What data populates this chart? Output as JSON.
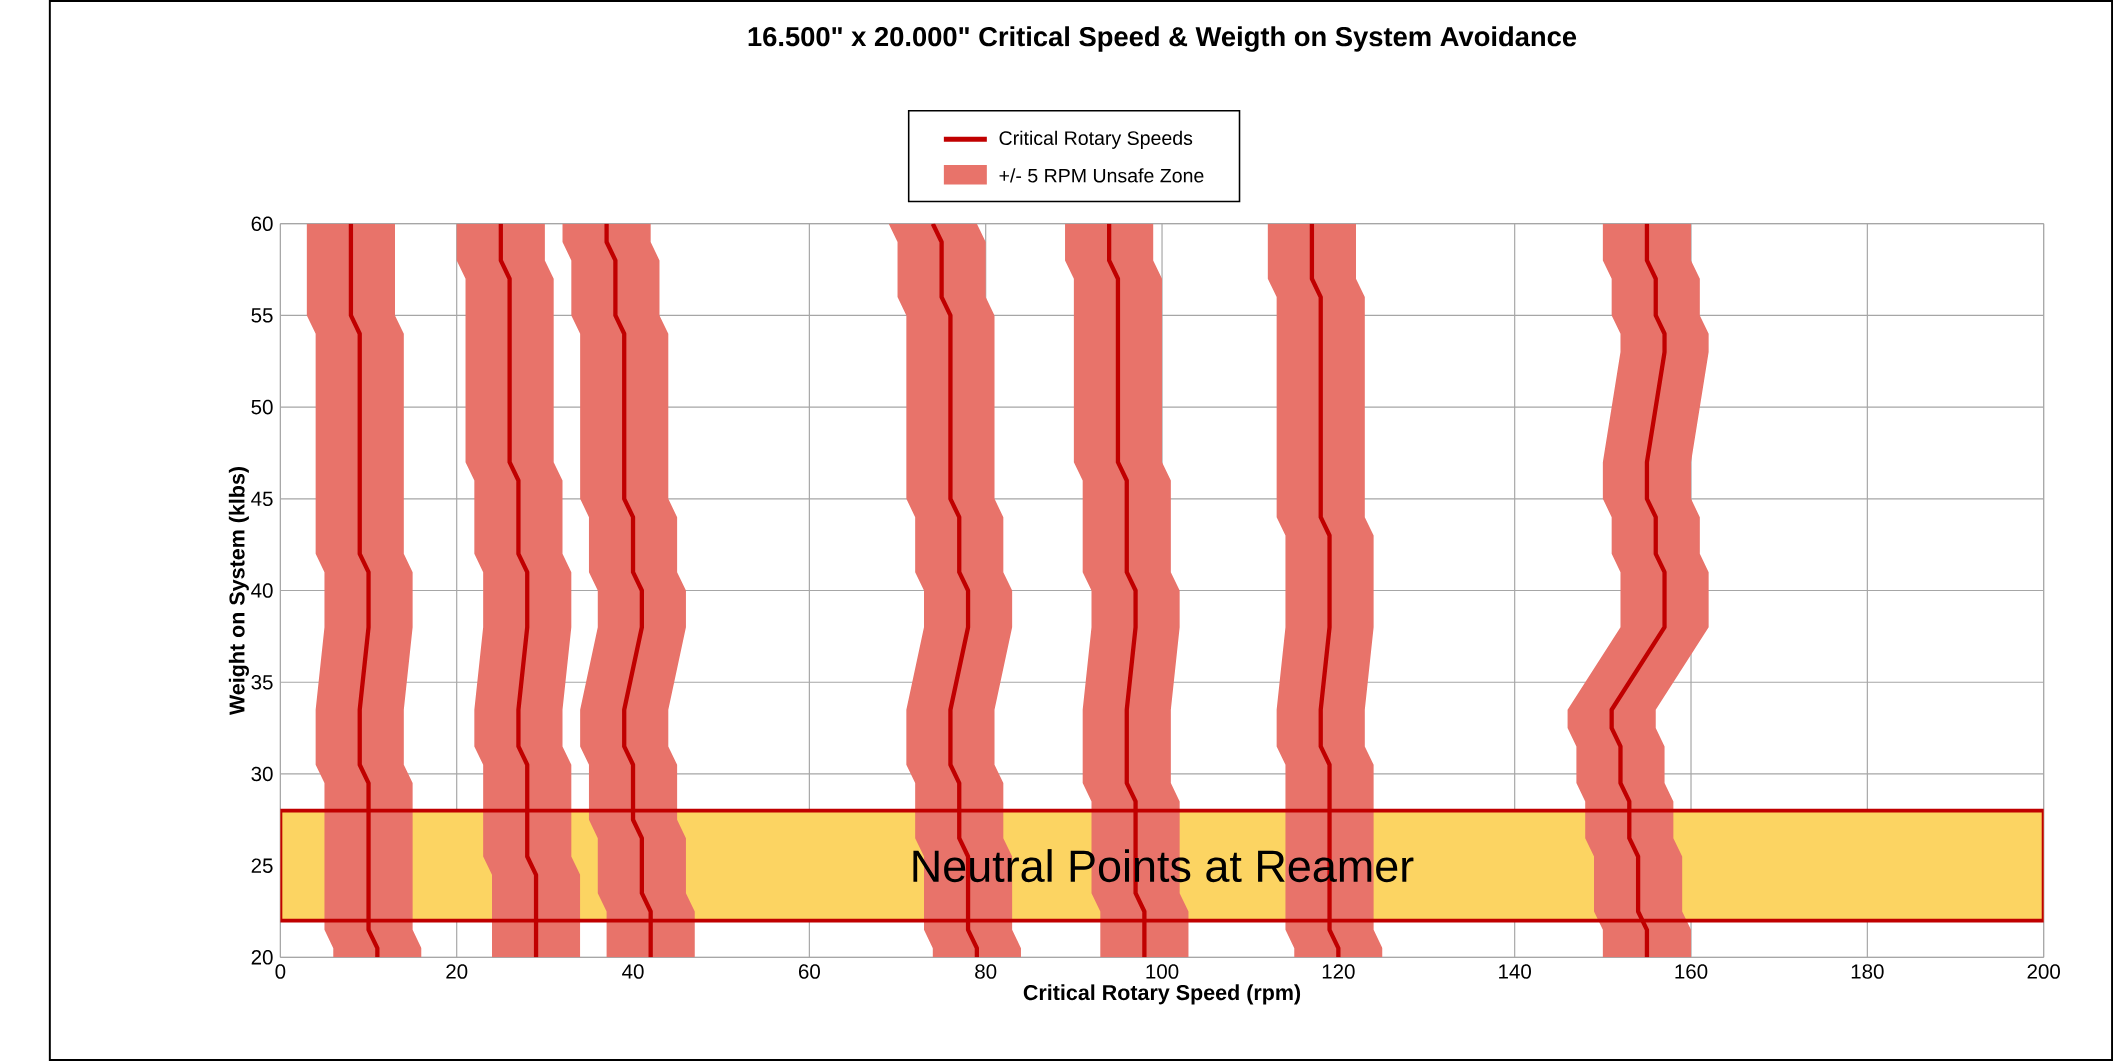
{
  "chart_data": {
    "type": "line",
    "orientation": "horizontal",
    "title": "16.500\" x 20.000\" Critical  Speed & Weigth on System Avoidance",
    "xlabel": "Critical Rotary Speed (rpm)",
    "ylabel": "Weight on System (klbs)",
    "xlim": [
      0,
      200
    ],
    "ylim": [
      20,
      60
    ],
    "xticks": [
      0,
      20,
      40,
      60,
      80,
      100,
      120,
      140,
      160,
      180,
      200
    ],
    "yticks": [
      20,
      25,
      30,
      35,
      40,
      45,
      50,
      55,
      60
    ],
    "grid": true,
    "legend": "top",
    "annotations": [
      "+/-  5 RPM Unsafe Zone"
    ],
    "bands": [
      {
        "axis": "y",
        "from": 22,
        "to": 28,
        "label": "Neutral Points at Reamer",
        "color": "#fcd462"
      }
    ],
    "series": [
      {
        "name": "Critical Rotary Speeds",
        "color": "#c00000",
        "x": [
          60,
          55,
          54,
          42,
          41,
          38,
          33.5,
          30.5,
          29.5,
          21.5,
          20.5,
          20
        ],
        "values": [
          8,
          8,
          9,
          9,
          10,
          10,
          9,
          9,
          10,
          10,
          11,
          11
        ],
        "lower": [
          3,
          3,
          4,
          4,
          5,
          5,
          4,
          4,
          5,
          5,
          6,
          6
        ],
        "upper": [
          13,
          13,
          14,
          14,
          15,
          15,
          14,
          14,
          15,
          15,
          16,
          16
        ]
      },
      {
        "color": "#c00000",
        "x": [
          60,
          58,
          57,
          47,
          46,
          42,
          41,
          38,
          33.5,
          31.5,
          30.5,
          25.5,
          24.5,
          20
        ],
        "values": [
          25,
          25,
          26,
          26,
          27,
          27,
          28,
          28,
          27,
          27,
          28,
          28,
          29,
          29
        ],
        "lower": [
          20,
          20,
          21,
          21,
          22,
          22,
          23,
          23,
          22,
          22,
          23,
          23,
          24,
          24
        ],
        "upper": [
          30,
          30,
          31,
          31,
          32,
          32,
          33,
          33,
          32,
          32,
          33,
          33,
          34,
          34
        ]
      },
      {
        "color": "#c00000",
        "x": [
          60,
          59,
          58,
          55,
          54,
          45,
          44,
          41,
          40,
          38,
          33.5,
          31.5,
          30.5,
          27.5,
          26.5,
          23.5,
          22.5,
          20
        ],
        "values": [
          37,
          37,
          38,
          38,
          39,
          39,
          40,
          40,
          41,
          41,
          39,
          39,
          40,
          40,
          41,
          41,
          42,
          42
        ],
        "lower": [
          32,
          32,
          33,
          33,
          34,
          34,
          35,
          35,
          36,
          36,
          34,
          34,
          35,
          35,
          36,
          36,
          37,
          37
        ],
        "upper": [
          42,
          42,
          43,
          43,
          44,
          44,
          45,
          45,
          46,
          46,
          44,
          44,
          45,
          45,
          46,
          46,
          47,
          47
        ]
      },
      {
        "color": "#c00000",
        "x": [
          60,
          59,
          56,
          55,
          45,
          44,
          41,
          40,
          38,
          33.5,
          30.5,
          29.5,
          26.5,
          25.5,
          21.5,
          20.5,
          20
        ],
        "values": [
          74,
          75,
          75,
          76,
          76,
          77,
          77,
          78,
          78,
          76,
          76,
          77,
          77,
          78,
          78,
          79,
          79
        ],
        "lower": [
          69,
          70,
          70,
          71,
          71,
          72,
          72,
          73,
          73,
          71,
          71,
          72,
          72,
          73,
          73,
          74,
          74
        ],
        "upper": [
          79,
          80,
          80,
          81,
          81,
          82,
          82,
          83,
          83,
          81,
          81,
          82,
          82,
          83,
          83,
          84,
          84
        ]
      },
      {
        "color": "#c00000",
        "x": [
          60,
          58,
          57,
          47,
          46,
          41,
          40,
          38,
          33.5,
          29.5,
          28.5,
          23.5,
          22.5,
          20
        ],
        "values": [
          94,
          94,
          95,
          95,
          96,
          96,
          97,
          97,
          96,
          96,
          97,
          97,
          98,
          98
        ],
        "lower": [
          89,
          89,
          90,
          90,
          91,
          91,
          92,
          92,
          91,
          91,
          92,
          92,
          93,
          93
        ],
        "upper": [
          99,
          99,
          100,
          100,
          101,
          101,
          102,
          102,
          101,
          101,
          102,
          102,
          103,
          103
        ]
      },
      {
        "color": "#c00000",
        "x": [
          60,
          57,
          56,
          44,
          43,
          38,
          33.5,
          31.5,
          30.5,
          21.5,
          20.5,
          20
        ],
        "values": [
          117,
          117,
          118,
          118,
          119,
          119,
          118,
          118,
          119,
          119,
          120,
          120
        ],
        "lower": [
          112,
          112,
          113,
          113,
          114,
          114,
          113,
          113,
          114,
          114,
          115,
          115
        ],
        "upper": [
          122,
          122,
          123,
          123,
          124,
          124,
          123,
          123,
          124,
          124,
          125,
          125
        ]
      },
      {
        "color": "#c00000",
        "x": [
          60,
          58,
          57,
          55,
          54,
          53,
          47,
          45,
          44,
          42,
          41,
          38,
          33.5,
          32.5,
          31.5,
          29.5,
          28.5,
          26.5,
          25.5,
          22.5,
          21.5,
          20
        ],
        "values": [
          155,
          155,
          156,
          156,
          157,
          157,
          155,
          155,
          156,
          156,
          157,
          157,
          151,
          151,
          152,
          152,
          153,
          153,
          154,
          154,
          155,
          155
        ],
        "lower": [
          150,
          150,
          151,
          151,
          152,
          152,
          150,
          150,
          151,
          151,
          152,
          152,
          146,
          146,
          147,
          147,
          148,
          148,
          149,
          149,
          150,
          150
        ],
        "upper": [
          160,
          160,
          161,
          161,
          162,
          162,
          160,
          160,
          161,
          161,
          162,
          162,
          156,
          156,
          157,
          157,
          158,
          158,
          159,
          159,
          160,
          160
        ]
      }
    ]
  }
}
